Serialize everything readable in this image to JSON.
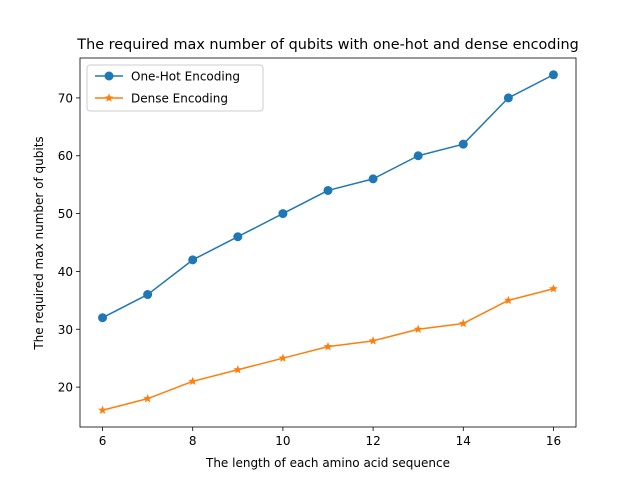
{
  "chart_data": {
    "type": "line",
    "title": "The required max number of qubits with one-hot and dense encoding",
    "xlabel": "The length of each amino acid sequence",
    "ylabel": "The required max number of qubits",
    "x": [
      6,
      7,
      8,
      9,
      10,
      11,
      12,
      13,
      14,
      15,
      16
    ],
    "xlim": [
      5.5,
      16.5
    ],
    "ylim": [
      13.1,
      76.9
    ],
    "xticks": [
      6,
      8,
      10,
      12,
      14,
      16
    ],
    "yticks": [
      20,
      30,
      40,
      50,
      60,
      70
    ],
    "grid": false,
    "legend_position": "upper-left",
    "series": [
      {
        "name": "One-Hot Encoding",
        "color": "#1f77b4",
        "marker": "circle",
        "values": [
          32,
          36,
          42,
          46,
          50,
          54,
          56,
          60,
          62,
          70,
          74
        ]
      },
      {
        "name": "Dense Encoding",
        "color": "#ff7f0e",
        "marker": "star",
        "values": [
          16,
          18,
          21,
          23,
          25,
          27,
          28,
          30,
          31,
          35,
          37
        ]
      }
    ]
  }
}
